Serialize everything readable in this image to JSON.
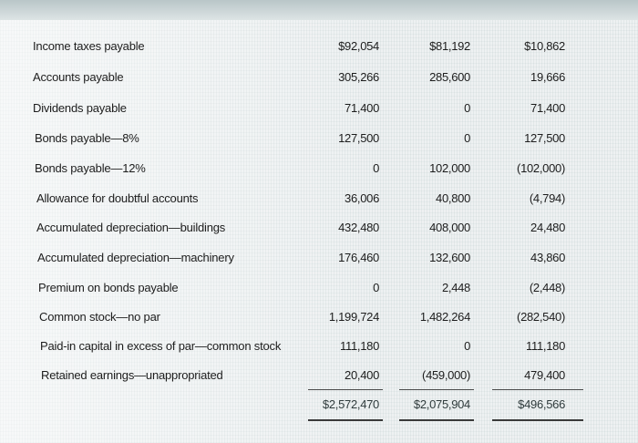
{
  "rows": [
    {
      "label": "Income taxes payable",
      "c1": "$92,054",
      "c2": "$81,192",
      "c3": "$10,862"
    },
    {
      "label": "Accounts payable",
      "c1": "305,266",
      "c2": "285,600",
      "c3": "19,666"
    },
    {
      "label": "Dividends payable",
      "c1": "71,400",
      "c2": "0",
      "c3": "71,400"
    },
    {
      "label": "Bonds payable—8%",
      "c1": "127,500",
      "c2": "0",
      "c3": "127,500"
    },
    {
      "label": "Bonds payable—12%",
      "c1": "0",
      "c2": "102,000",
      "c3": "(102,000)"
    },
    {
      "label": "Allowance for doubtful accounts",
      "c1": "36,006",
      "c2": "40,800",
      "c3": "(4,794)"
    },
    {
      "label": "Accumulated depreciation—buildings",
      "c1": "432,480",
      "c2": "408,000",
      "c3": "24,480"
    },
    {
      "label": "Accumulated depreciation—machinery",
      "c1": "176,460",
      "c2": "132,600",
      "c3": "43,860"
    },
    {
      "label": "Premium on bonds payable",
      "c1": "0",
      "c2": "2,448",
      "c3": "(2,448)"
    },
    {
      "label": "Common stock—no par",
      "c1": "1,199,724",
      "c2": "1,482,264",
      "c3": "(282,540)"
    },
    {
      "label": "Paid-in capital in excess of par—common stock",
      "c1": "111,180",
      "c2": "0",
      "c3": "111,180"
    },
    {
      "label": "Retained earnings—unappropriated",
      "c1": "20,400",
      "c2": "(459,000)",
      "c3": "479,400"
    }
  ],
  "totals": {
    "c1": "$2,572,470",
    "c2": "$2,075,904",
    "c3": "$496,566"
  }
}
